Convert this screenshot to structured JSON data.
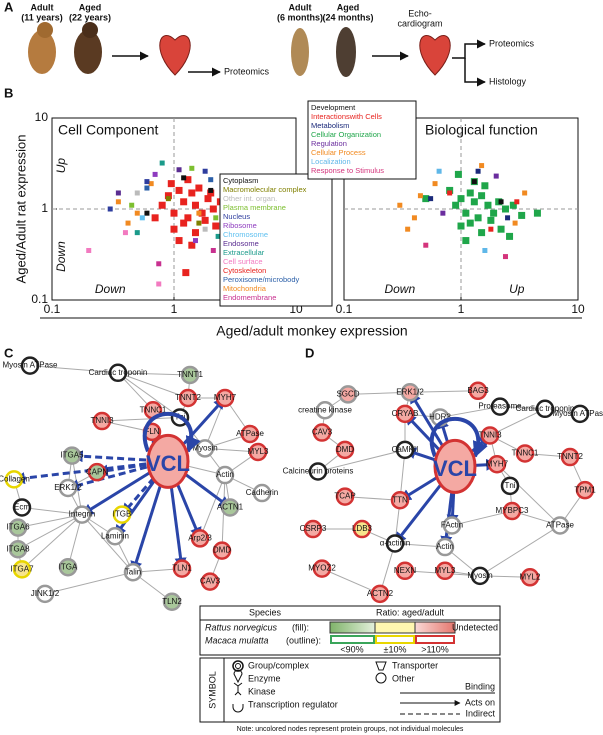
{
  "panel_a": {
    "label": "A",
    "monkey_adult": "Adult",
    "monkey_adult_age": "(11 years)",
    "monkey_aged": "Aged",
    "monkey_aged_age": "(22 years)",
    "monkey_output": "Proteomics",
    "rat_adult": "Adult",
    "rat_adult_age": "(6 months)",
    "rat_aged": "Aged",
    "rat_aged_age": "(24 months)",
    "echo_1": "Echo-",
    "echo_2": "cardiogram",
    "rat_output_1": "Proteomics",
    "rat_output_2": "Histology"
  },
  "panel_b": {
    "label": "B",
    "x_label": "Aged/adult monkey expression"
  },
  "chart_data": [
    {
      "type": "scatter",
      "title": "Cell Component",
      "y_label": "Aged/Adult rat expression",
      "log": true,
      "xlim": [
        0.1,
        10
      ],
      "ylim": [
        0.1,
        10
      ],
      "xticks": [
        0.1,
        1,
        10
      ],
      "yticks": [
        0.1,
        1,
        10
      ],
      "annotations": {
        "y_up": "Up",
        "y_down": "Down",
        "x_down": "Down",
        "x_up": "Up"
      },
      "series": [
        {
          "name": "Cytoplasm",
          "color": "#111111",
          "x": [
            1.2,
            0.6,
            2.0
          ],
          "values": [
            2.2,
            0.9,
            1.6
          ]
        },
        {
          "name": "Macromolecular complex",
          "color": "#808000",
          "x": [
            0.9,
            1.6,
            2.5
          ],
          "values": [
            1.3,
            0.7,
            1.1
          ]
        },
        {
          "name": "Other int. organ.",
          "color": "#bbbbbb",
          "x": [
            0.5,
            1.8
          ],
          "values": [
            1.5,
            0.6
          ]
        },
        {
          "name": "Plasma membrane",
          "color": "#7cbf2f",
          "x": [
            0.45,
            2.2,
            1.4
          ],
          "values": [
            1.1,
            0.8,
            2.8
          ]
        },
        {
          "name": "Nucleus",
          "color": "#2e3d9e",
          "x": [
            0.3,
            0.6,
            1.8,
            2.6
          ],
          "values": [
            1.0,
            2.0,
            2.6,
            1.6
          ]
        },
        {
          "name": "Ribosome",
          "color": "#8e3bbf",
          "x": [
            0.7,
            1.5
          ],
          "values": [
            2.4,
            0.45
          ]
        },
        {
          "name": "Chromosome",
          "color": "#5fc0f0",
          "x": [
            0.55,
            3.0
          ],
          "values": [
            0.8,
            1.3
          ]
        },
        {
          "name": "Endosome",
          "color": "#5a2d91",
          "x": [
            0.35,
            1.1
          ],
          "values": [
            1.5,
            2.7
          ]
        },
        {
          "name": "Extracellular",
          "color": "#1a9a8a",
          "x": [
            0.5,
            2.3,
            0.8
          ],
          "values": [
            0.55,
            0.5,
            3.2
          ]
        },
        {
          "name": "Cell surface",
          "color": "#f27ac0",
          "x": [
            0.2,
            0.4,
            0.75
          ],
          "values": [
            0.35,
            0.55,
            0.15
          ]
        },
        {
          "name": "Cytoskeleton",
          "color": "#e8231f",
          "x": [
            0.8,
            0.9,
            1.0,
            1.1,
            1.2,
            1.3,
            1.4,
            1.5,
            1.7,
            1.9,
            2.1,
            2.4,
            2.8,
            3.3,
            4.5,
            1.0,
            1.2,
            1.5,
            1.8,
            2.2,
            0.95,
            1.3,
            1.6,
            2.0,
            1.1,
            1.4,
            0.7,
            2.6,
            5.5,
            1.25
          ],
          "values": [
            1.1,
            1.4,
            0.9,
            1.6,
            1.2,
            0.8,
            1.5,
            1.1,
            0.9,
            1.3,
            1.0,
            1.2,
            0.85,
            0.9,
            0.9,
            0.6,
            0.7,
            0.55,
            0.75,
            0.65,
            1.9,
            2.1,
            1.7,
            1.5,
            0.45,
            0.4,
            0.8,
            1.6,
            0.85,
            0.2
          ]
        },
        {
          "name": "Peroxisome/microbody",
          "color": "#2b5fa8",
          "x": [
            0.6,
            2.0
          ],
          "values": [
            1.7,
            2.1
          ]
        },
        {
          "name": "Mitochondria",
          "color": "#f18a21",
          "x": [
            0.35,
            0.5,
            0.65,
            2.8,
            1.6,
            0.42
          ],
          "values": [
            1.2,
            0.9,
            1.9,
            1.4,
            0.9,
            0.7
          ]
        },
        {
          "name": "Endomembrane",
          "color": "#c8308f",
          "x": [
            0.75,
            2.1
          ],
          "values": [
            0.25,
            0.35
          ]
        }
      ]
    },
    {
      "type": "scatter",
      "title": "Biological function",
      "log": true,
      "xlim": [
        0.1,
        10
      ],
      "ylim": [
        0.1,
        10
      ],
      "xticks": [
        0.1,
        1,
        10
      ],
      "annotations": {
        "x_down": "Down",
        "x_up": "Up"
      },
      "series": [
        {
          "name": "Development",
          "color": "#111111",
          "x": [
            1.3,
            2.2
          ],
          "values": [
            2.0,
            1.2
          ]
        },
        {
          "name": "Interactionswith Cells",
          "color": "#e8231f",
          "x": [
            0.8,
            1.8,
            3.0
          ],
          "values": [
            1.5,
            0.6,
            1.2
          ]
        },
        {
          "name": "Metabolism",
          "color": "#1b2a7a",
          "x": [
            0.55,
            1.4,
            2.5
          ],
          "values": [
            1.3,
            2.6,
            0.8
          ]
        },
        {
          "name": "Cellular Organization",
          "color": "#1fa64a",
          "x": [
            0.9,
            1.0,
            1.1,
            1.2,
            1.3,
            1.4,
            1.5,
            1.7,
            1.9,
            2.1,
            2.4,
            2.8,
            3.3,
            0.8,
            1.0,
            1.2,
            1.5,
            1.8,
            2.2,
            1.3,
            1.6,
            0.5,
            2.6,
            4.5,
            1.1,
            0.95
          ],
          "values": [
            1.1,
            1.3,
            0.9,
            1.5,
            1.2,
            0.8,
            1.4,
            1.1,
            0.9,
            1.2,
            1.0,
            1.1,
            0.85,
            1.6,
            0.65,
            0.7,
            0.55,
            0.75,
            0.6,
            2.0,
            1.8,
            1.3,
            0.5,
            0.9,
            0.45,
            2.4
          ]
        },
        {
          "name": "Regulation",
          "color": "#6a2d9e",
          "x": [
            0.7,
            2.0
          ],
          "values": [
            0.9,
            2.3
          ]
        },
        {
          "name": "Cellular Process",
          "color": "#f18a21",
          "x": [
            0.3,
            0.4,
            0.6,
            0.45,
            3.5,
            2.9,
            1.5,
            0.35
          ],
          "values": [
            1.1,
            0.8,
            1.9,
            1.4,
            1.5,
            0.7,
            3.0,
            0.6
          ]
        },
        {
          "name": "Localization",
          "color": "#5fb7e8",
          "x": [
            0.65,
            1.6
          ],
          "values": [
            2.6,
            0.35
          ]
        },
        {
          "name": "Response to Stimulus",
          "color": "#d4347c",
          "x": [
            0.5,
            2.4
          ],
          "values": [
            0.4,
            0.3
          ]
        }
      ]
    }
  ],
  "network_c": {
    "label": "C",
    "nodes": [
      {
        "label": "Myosin ATPase",
        "fill": "#ffffff",
        "outline": "#222222"
      },
      {
        "label": "Cardiac troponin",
        "fill": "#ffffff",
        "outline": "#222222"
      },
      {
        "label": "TNNT1",
        "fill": "#a9c79b",
        "outline": "#999999"
      },
      {
        "label": "TNNT2",
        "fill": "#f4a9a3",
        "outline": "#d33333"
      },
      {
        "label": "MYH7",
        "fill": "#f4a9a3",
        "outline": "#d33333"
      },
      {
        "label": "TNNC1",
        "fill": "#f4a9a3",
        "outline": "#d33333"
      },
      {
        "label": "Tni",
        "fill": "#ffffff",
        "outline": "#222222"
      },
      {
        "label": "TNNI3",
        "fill": "#f4a9a3",
        "outline": "#d33333"
      },
      {
        "label": "FLN",
        "fill": "#f4a9a3",
        "outline": "#d33333"
      },
      {
        "label": "ATPase",
        "fill": "#f4a9a3",
        "outline": "#d33333"
      },
      {
        "label": "Myosin",
        "fill": "#ffffff",
        "outline": "#999999"
      },
      {
        "label": "MYL3",
        "fill": "#f4a9a3",
        "outline": "#d33333"
      },
      {
        "label": "ITGA5",
        "fill": "#a9c79b",
        "outline": "#999999"
      },
      {
        "label": "CAPN",
        "fill": "#a9c79b",
        "outline": "#d33333"
      },
      {
        "label": "VCL",
        "fill": "#f4a9a3",
        "outline": "#d33333"
      },
      {
        "label": "Collagen",
        "fill": "#ffffff",
        "outline": "#e8d600"
      },
      {
        "label": "ERK1/2",
        "fill": "#ffffff",
        "outline": "#999999"
      },
      {
        "label": "Actin",
        "fill": "#ffffff",
        "outline": "#999999"
      },
      {
        "label": "Cadherin",
        "fill": "#ffffff",
        "outline": "#999999"
      },
      {
        "label": "Ecm",
        "fill": "#ffffff",
        "outline": "#222222"
      },
      {
        "label": "Integrin",
        "fill": "#ffffff",
        "outline": "#999999"
      },
      {
        "label": "ITGB",
        "fill": "#ffffff",
        "outline": "#e8d600"
      },
      {
        "label": "ACTN1",
        "fill": "#a9c79b",
        "outline": "#999999"
      },
      {
        "label": "Laminin",
        "fill": "#ffffff",
        "outline": "#999999"
      },
      {
        "label": "Arp2/3",
        "fill": "#f4a9a3",
        "outline": "#d33333"
      },
      {
        "label": "ITGA6",
        "fill": "#a9c79b",
        "outline": "#999999"
      },
      {
        "label": "ITGA8",
        "fill": "#a9c79b",
        "outline": "#999999"
      },
      {
        "label": "ITGA7",
        "fill": "#f7e58c",
        "outline": "#e8d600"
      },
      {
        "label": "ITGA",
        "fill": "#a9c79b",
        "outline": "#999999"
      },
      {
        "label": "DMD",
        "fill": "#f4a9a3",
        "outline": "#d33333"
      },
      {
        "label": "TLN1",
        "fill": "#f4a9a3",
        "outline": "#d33333"
      },
      {
        "label": "CAV3",
        "fill": "#f4a9a3",
        "outline": "#d33333"
      },
      {
        "label": "Talin",
        "fill": "#ffffff",
        "outline": "#999999"
      },
      {
        "label": "JINK1/2",
        "fill": "#ffffff",
        "outline": "#999999"
      },
      {
        "label": "TLN2",
        "fill": "#a9c79b",
        "outline": "#999999"
      }
    ]
  },
  "network_d": {
    "label": "D",
    "nodes": [
      {
        "label": "SGCD",
        "fill": "#f4a9a3",
        "outline": "#999999"
      },
      {
        "label": "ERK1/2",
        "fill": "#f4a9a3",
        "outline": "#999999"
      },
      {
        "label": "BAG3",
        "fill": "#f4a9a3",
        "outline": "#d33333"
      },
      {
        "label": "creatine kinase",
        "fill": "#ffffff",
        "outline": "#999999"
      },
      {
        "label": "CRYAB",
        "fill": "#f4a9a3",
        "outline": "#d33333"
      },
      {
        "label": "HDR3",
        "fill": "#ffffff",
        "outline": "#999999"
      },
      {
        "label": "Proteasome",
        "fill": "#ffffff",
        "outline": "#222222"
      },
      {
        "label": "Cardiac troponin",
        "fill": "#ffffff",
        "outline": "#222222"
      },
      {
        "label": "Myosin ATPase",
        "fill": "#ffffff",
        "outline": "#222222"
      },
      {
        "label": "CAV3",
        "fill": "#f4a9a3",
        "outline": "#d33333"
      },
      {
        "label": "DMD",
        "fill": "#f4a9a3",
        "outline": "#d33333"
      },
      {
        "label": "CaMKII",
        "fill": "#ffffff",
        "outline": "#222222"
      },
      {
        "label": "TNNI3",
        "fill": "#f4a9a3",
        "outline": "#d33333"
      },
      {
        "label": "TNNC1",
        "fill": "#f4a9a3",
        "outline": "#d33333"
      },
      {
        "label": "TNNT2",
        "fill": "#f4a9a3",
        "outline": "#d33333"
      },
      {
        "label": "MYH7",
        "fill": "#f4a9a3",
        "outline": "#d33333"
      },
      {
        "label": "VCL",
        "fill": "#f4a9a3",
        "outline": "#d33333"
      },
      {
        "label": "Calcineurin proteins",
        "fill": "#ffffff",
        "outline": "#222222"
      },
      {
        "label": "Tni",
        "fill": "#ffffff",
        "outline": "#222222"
      },
      {
        "label": "TPM1",
        "fill": "#f4a9a3",
        "outline": "#d33333"
      },
      {
        "label": "TCAP",
        "fill": "#f4a9a3",
        "outline": "#d33333"
      },
      {
        "label": "TTN",
        "fill": "#f4a9a3",
        "outline": "#d33333"
      },
      {
        "label": "MYBPC3",
        "fill": "#f4a9a3",
        "outline": "#d33333"
      },
      {
        "label": "CSRP3",
        "fill": "#f4a9a3",
        "outline": "#d33333"
      },
      {
        "label": "LDB3",
        "fill": "#f7e58c",
        "outline": "#d33333"
      },
      {
        "label": "FActin",
        "fill": "#ffffff",
        "outline": "#999999"
      },
      {
        "label": "ATPase",
        "fill": "#ffffff",
        "outline": "#999999"
      },
      {
        "label": "α-actinin",
        "fill": "#ffffff",
        "outline": "#222222"
      },
      {
        "label": "Actin",
        "fill": "#ffffff",
        "outline": "#999999"
      },
      {
        "label": "MYOZ2",
        "fill": "#f4a9a3",
        "outline": "#d33333"
      },
      {
        "label": "NEXN",
        "fill": "#f4a9a3",
        "outline": "#d33333"
      },
      {
        "label": "MYL3",
        "fill": "#f4a9a3",
        "outline": "#d33333"
      },
      {
        "label": "Myosin",
        "fill": "#ffffff",
        "outline": "#222222"
      },
      {
        "label": "MYL2",
        "fill": "#f4a9a3",
        "outline": "#d33333"
      },
      {
        "label": "ACTN2",
        "fill": "#f4a9a3",
        "outline": "#d33333"
      }
    ]
  },
  "legend": {
    "species": "Species",
    "ratio": "Ratio: aged/adult",
    "rattus": "Rattus norvegicus",
    "rattus_suffix": "(fill):",
    "macaca": "Macaca mulatta",
    "macaca_suffix": "(outline):",
    "low": "<90%",
    "mid": "±10%",
    "high": ">110%",
    "undetected": "Undetected",
    "symbol": "SYMBOL",
    "group": "Group/complex",
    "enzyme": "Enzyme",
    "kinase": "Kinase",
    "transcription": "Transcription regulator",
    "transporter": "Transporter",
    "other": "Other",
    "binding": "Binding",
    "acts_on": "Acts on",
    "indirect": "Indirect",
    "note": "Note: uncolored nodes represent protein groups, not individual molecules"
  }
}
